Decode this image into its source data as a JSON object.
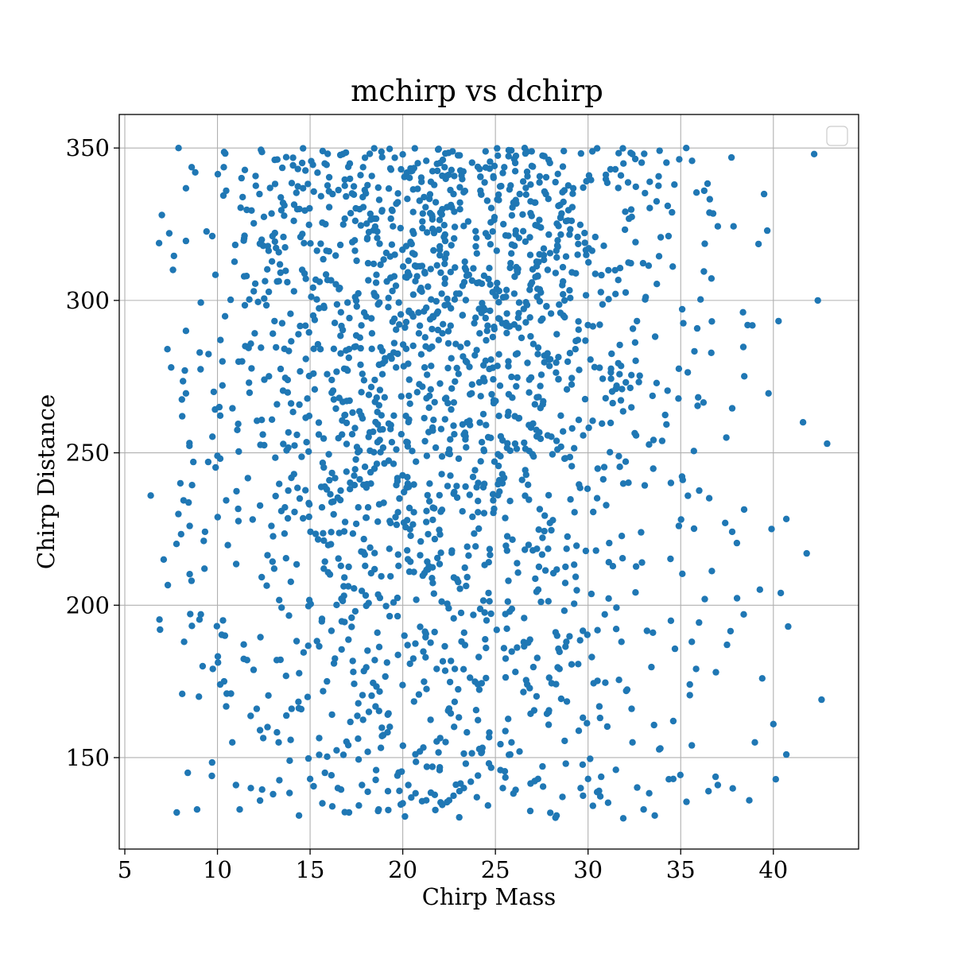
{
  "chart_data": {
    "type": "scatter",
    "title": "mchirp vs dchirp",
    "xlabel": "Chirp Mass",
    "ylabel": "Chirp Distance",
    "xlim": [
      4.7,
      44.6
    ],
    "ylim": [
      120,
      361
    ],
    "xticks": [
      5,
      10,
      15,
      20,
      25,
      30,
      35,
      40
    ],
    "yticks": [
      150,
      200,
      250,
      300,
      350
    ],
    "grid": true,
    "legend": {
      "placement": "top-right",
      "entries": []
    },
    "marker_color": "#1f77b4",
    "point_count": 2000,
    "seed": 73,
    "series": [
      {
        "points": [
          [
            6.4,
            236
          ],
          [
            6.9,
            192
          ],
          [
            7.0,
            328
          ],
          [
            7.1,
            215
          ],
          [
            7.3,
            284
          ],
          [
            7.4,
            322
          ],
          [
            7.5,
            278
          ],
          [
            7.6,
            310
          ],
          [
            7.8,
            132
          ],
          [
            7.9,
            350
          ],
          [
            8.0,
            240
          ],
          [
            8.1,
            262
          ],
          [
            8.2,
            188
          ],
          [
            8.3,
            290
          ],
          [
            8.4,
            145
          ],
          [
            8.5,
            226
          ],
          [
            8.6,
            208
          ],
          [
            8.7,
            247
          ],
          [
            8.8,
            342
          ],
          [
            8.9,
            133
          ],
          [
            9.0,
            170
          ],
          [
            9.1,
            197
          ],
          [
            9.2,
            180
          ],
          [
            9.3,
            212
          ],
          [
            9.5,
            247
          ],
          [
            9.7,
            144
          ],
          [
            9.8,
            270
          ],
          [
            10.0,
            249
          ],
          [
            10.3,
            195
          ],
          [
            10.5,
            171
          ],
          [
            10.8,
            155
          ],
          [
            11.0,
            141
          ],
          [
            11.2,
            133
          ],
          [
            11.5,
            285
          ],
          [
            11.8,
            140
          ],
          [
            12.3,
            159
          ],
          [
            13.0,
            138
          ],
          [
            13.3,
            155
          ],
          [
            14.0,
            166
          ],
          [
            14.4,
            131
          ],
          [
            15.0,
            143
          ],
          [
            16.2,
            134
          ],
          [
            16.5,
            140
          ],
          [
            17.8,
            141
          ],
          [
            18.7,
            133
          ],
          [
            20.0,
            135
          ],
          [
            20.3,
            141
          ],
          [
            21.3,
            147
          ],
          [
            22.5,
            136
          ],
          [
            23.3,
            140
          ],
          [
            24.0,
            137
          ],
          [
            25.8,
            151
          ],
          [
            27.3,
            143
          ],
          [
            28.3,
            131
          ],
          [
            29.6,
            140
          ],
          [
            30.0,
            143
          ],
          [
            31.5,
            146
          ],
          [
            33.0,
            133
          ],
          [
            33.6,
            131
          ],
          [
            34.6,
            143
          ],
          [
            35.6,
            154
          ],
          [
            36.5,
            139
          ],
          [
            37.0,
            141
          ],
          [
            38.7,
            136
          ],
          [
            40.0,
            161
          ],
          [
            40.7,
            151
          ],
          [
            42.2,
            348
          ],
          [
            42.4,
            300
          ],
          [
            42.6,
            169
          ],
          [
            42.9,
            253
          ],
          [
            41.8,
            217
          ],
          [
            41.6,
            260
          ],
          [
            40.8,
            193
          ],
          [
            40.4,
            204
          ],
          [
            39.9,
            225
          ],
          [
            39.4,
            176
          ],
          [
            39.0,
            155
          ],
          [
            38.4,
            197
          ],
          [
            37.5,
            187
          ],
          [
            37.4,
            227
          ],
          [
            36.9,
            178
          ],
          [
            36.3,
            202
          ],
          [
            35.6,
            188
          ],
          [
            34.9,
            226
          ],
          [
            34.6,
            162
          ],
          [
            33.9,
            153
          ],
          [
            33.5,
            191
          ],
          [
            32.4,
            155
          ],
          [
            31.8,
            188
          ],
          [
            30.2,
            183
          ],
          [
            28.8,
            148
          ],
          [
            26.3,
            152
          ],
          [
            24.1,
            183
          ],
          [
            23.4,
            148
          ],
          [
            21.6,
            147
          ],
          [
            19.2,
            139
          ],
          [
            17.1,
            132
          ],
          [
            15.8,
            145
          ],
          [
            13.9,
            149
          ],
          [
            12.7,
            160
          ],
          [
            11.6,
            182
          ],
          [
            10.4,
            190
          ]
        ]
      }
    ]
  }
}
